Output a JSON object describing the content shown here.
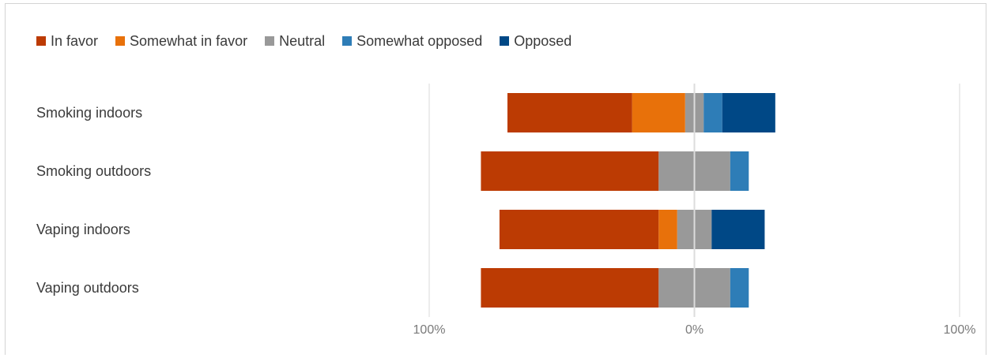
{
  "chart_data": {
    "type": "bar",
    "orientation": "horizontal",
    "stacked": "diverging",
    "categories": [
      "Smoking indoors",
      "Smoking outdoors",
      "Vaping indoors",
      "Vaping outdoors"
    ],
    "series": [
      {
        "name": "In favor",
        "color": "#bc3b03",
        "values": [
          47,
          67,
          60,
          67
        ]
      },
      {
        "name": "Somewhat in favor",
        "color": "#e8710a",
        "values": [
          20,
          0,
          7,
          0
        ]
      },
      {
        "name": "Neutral",
        "color": "#999999",
        "values": [
          7,
          27,
          13,
          27
        ]
      },
      {
        "name": "Somewhat opposed",
        "color": "#2e7db7",
        "values": [
          7,
          7,
          0,
          7
        ]
      },
      {
        "name": "Opposed",
        "color": "#004886",
        "values": [
          20,
          0,
          20,
          0
        ]
      }
    ],
    "x_tick_labels": [
      "100%",
      "0%",
      "100%"
    ],
    "xlim": [
      -100,
      100
    ],
    "grid": true,
    "legend_position": "top-left"
  }
}
